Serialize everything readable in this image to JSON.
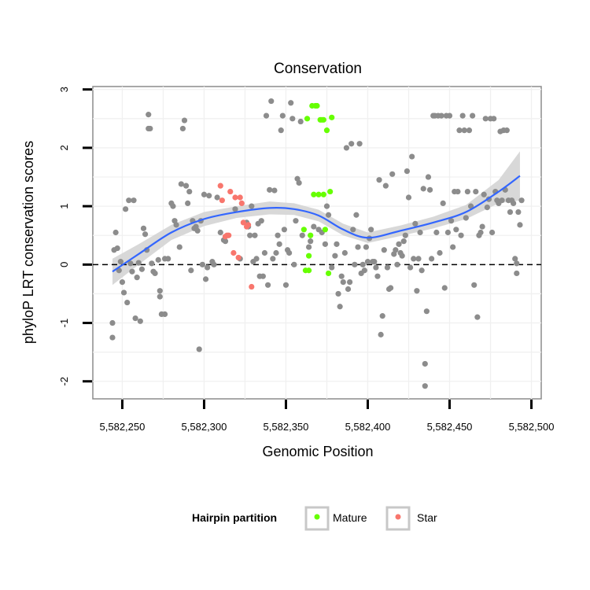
{
  "chart_data": {
    "type": "scatter",
    "title": "Conservation",
    "xlabel": "Genomic Position",
    "ylabel": "phyloP LRT conservation scores",
    "xlim": [
      5582232,
      5582506
    ],
    "ylim": [
      -2.3,
      3.05
    ],
    "x_ticks": [
      5582250,
      5582300,
      5582350,
      5582400,
      5582450,
      5582500
    ],
    "x_tick_labels": [
      "5,582,250",
      "5,582,300",
      "5,582,350",
      "5,582,400",
      "5,582,450",
      "5,582,500"
    ],
    "y_ticks": [
      -2,
      -1,
      0,
      1,
      2,
      3
    ],
    "y_tick_labels": [
      "-2",
      "-1",
      "0",
      "1",
      "2",
      "3"
    ],
    "grid": true,
    "reference_line": {
      "y": 0,
      "style": "dashed"
    },
    "legend": {
      "title": "Hairpin partition",
      "position": "bottom",
      "entries": [
        {
          "label": "Mature",
          "color": "#66ff00"
        },
        {
          "label": "Star",
          "color": "#f8766d"
        }
      ]
    },
    "colors": {
      "background_points": "#8c8c8c",
      "Mature": "#66ff00",
      "Star": "#f8766d",
      "smooth": "#3366ff",
      "band": "#d4d4d4"
    },
    "series": [
      {
        "group": "background",
        "points": [
          [
            5582244,
            -1.0
          ],
          [
            5582244,
            -1.25
          ],
          [
            5582245,
            0.25
          ],
          [
            5582246,
            0.55
          ],
          [
            5582247,
            0.28
          ],
          [
            5582248,
            -0.1
          ],
          [
            5582249,
            0.05
          ],
          [
            5582250,
            -0.3
          ],
          [
            5582251,
            -0.48
          ],
          [
            5582252,
            0.95
          ],
          [
            5582253,
            -0.65
          ],
          [
            5582254,
            1.1
          ],
          [
            5582255,
            0.02
          ],
          [
            5582256,
            -0.12
          ],
          [
            5582257,
            1.1
          ],
          [
            5582258,
            -0.92
          ],
          [
            5582259,
            -0.22
          ],
          [
            5582260,
            0.03
          ],
          [
            5582261,
            -0.97
          ],
          [
            5582262,
            -0.08
          ],
          [
            5582263,
            0.62
          ],
          [
            5582264,
            0.52
          ],
          [
            5582265,
            0.25
          ],
          [
            5582266,
            2.33
          ],
          [
            5582266,
            2.57
          ],
          [
            5582267,
            2.33
          ],
          [
            5582268,
            0.02
          ],
          [
            5582269,
            -0.12
          ],
          [
            5582270,
            -0.15
          ],
          [
            5582272,
            0.08
          ],
          [
            5582273,
            -0.45
          ],
          [
            5582273,
            -0.55
          ],
          [
            5582274,
            -0.85
          ],
          [
            5582276,
            -0.85
          ],
          [
            5582276,
            0.1
          ],
          [
            5582278,
            0.1
          ],
          [
            5582280,
            1.05
          ],
          [
            5582281,
            1.0
          ],
          [
            5582282,
            0.75
          ],
          [
            5582283,
            0.68
          ],
          [
            5582285,
            0.3
          ],
          [
            5582286,
            1.38
          ],
          [
            5582287,
            2.33
          ],
          [
            5582288,
            2.47
          ],
          [
            5582289,
            1.35
          ],
          [
            5582290,
            1.05
          ],
          [
            5582291,
            1.25
          ],
          [
            5582292,
            -0.1
          ],
          [
            5582293,
            0.75
          ],
          [
            5582294,
            0.62
          ],
          [
            5582295,
            0.65
          ],
          [
            5582296,
            0.58
          ],
          [
            5582297,
            -1.45
          ],
          [
            5582298,
            0.75
          ],
          [
            5582299,
            0.0
          ],
          [
            5582300,
            1.2
          ],
          [
            5582301,
            -0.25
          ],
          [
            5582302,
            -0.05
          ],
          [
            5582303,
            1.18
          ],
          [
            5582305,
            0.05
          ],
          [
            5582306,
            0.0
          ],
          [
            5582308,
            1.15
          ],
          [
            5582310,
            0.55
          ],
          [
            5582312,
            0.42
          ],
          [
            5582313,
            0.4
          ],
          [
            5582319,
            0.95
          ],
          [
            5582322,
            0.1
          ],
          [
            5582326,
            0.72
          ],
          [
            5582327,
            0.65
          ],
          [
            5582328,
            0.5
          ],
          [
            5582329,
            1.0
          ],
          [
            5582330,
            0.05
          ],
          [
            5582331,
            0.5
          ],
          [
            5582332,
            0.1
          ],
          [
            5582333,
            0.7
          ],
          [
            5582334,
            -0.2
          ],
          [
            5582335,
            0.75
          ],
          [
            5582336,
            -0.2
          ],
          [
            5582337,
            0.2
          ],
          [
            5582338,
            2.55
          ],
          [
            5582339,
            -0.35
          ],
          [
            5582340,
            1.28
          ],
          [
            5582341,
            2.8
          ],
          [
            5582342,
            0.1
          ],
          [
            5582343,
            1.27
          ],
          [
            5582344,
            0.2
          ],
          [
            5582345,
            0.5
          ],
          [
            5582346,
            0.35
          ],
          [
            5582347,
            2.3
          ],
          [
            5582348,
            2.55
          ],
          [
            5582349,
            0.6
          ],
          [
            5582350,
            -0.35
          ],
          [
            5582351,
            0.25
          ],
          [
            5582352,
            0.2
          ],
          [
            5582353,
            2.77
          ],
          [
            5582354,
            2.5
          ],
          [
            5582355,
            0.0
          ],
          [
            5582356,
            0.75
          ],
          [
            5582357,
            1.47
          ],
          [
            5582358,
            1.4
          ],
          [
            5582359,
            2.45
          ],
          [
            5582360,
            0.5
          ],
          [
            5582364,
            0.3
          ],
          [
            5582365,
            0.4
          ],
          [
            5582367,
            0.65
          ],
          [
            5582370,
            0.6
          ],
          [
            5582372,
            0.55
          ],
          [
            5582374,
            0.35
          ],
          [
            5582375,
            1.0
          ],
          [
            5582376,
            0.85
          ],
          [
            5582378,
            -0.05
          ],
          [
            5582380,
            0.15
          ],
          [
            5582381,
            0.35
          ],
          [
            5582382,
            -0.5
          ],
          [
            5582383,
            -0.72
          ],
          [
            5582384,
            -0.2
          ],
          [
            5582385,
            -0.3
          ],
          [
            5582386,
            0.2
          ],
          [
            5582387,
            2.0
          ],
          [
            5582388,
            -0.42
          ],
          [
            5582389,
            -0.3
          ],
          [
            5582390,
            2.07
          ],
          [
            5582391,
            0.6
          ],
          [
            5582392,
            0.0
          ],
          [
            5582393,
            0.85
          ],
          [
            5582394,
            0.3
          ],
          [
            5582395,
            2.07
          ],
          [
            5582396,
            -0.15
          ],
          [
            5582397,
            0.0
          ],
          [
            5582398,
            -0.1
          ],
          [
            5582399,
            0.3
          ],
          [
            5582400,
            0.05
          ],
          [
            5582401,
            0.45
          ],
          [
            5582402,
            0.6
          ],
          [
            5582403,
            0.05
          ],
          [
            5582404,
            0.05
          ],
          [
            5582405,
            -0.05
          ],
          [
            5582406,
            -0.2
          ],
          [
            5582407,
            1.45
          ],
          [
            5582408,
            -1.2
          ],
          [
            5582409,
            -0.88
          ],
          [
            5582410,
            0.25
          ],
          [
            5582411,
            1.35
          ],
          [
            5582412,
            -0.05
          ],
          [
            5582413,
            -0.42
          ],
          [
            5582414,
            -0.4
          ],
          [
            5582415,
            1.55
          ],
          [
            5582416,
            0.18
          ],
          [
            5582417,
            0.25
          ],
          [
            5582418,
            0.0
          ],
          [
            5582419,
            0.35
          ],
          [
            5582420,
            0.2
          ],
          [
            5582421,
            0.15
          ],
          [
            5582422,
            0.4
          ],
          [
            5582423,
            0.5
          ],
          [
            5582424,
            1.6
          ],
          [
            5582425,
            1.15
          ],
          [
            5582426,
            -0.05
          ],
          [
            5582427,
            1.85
          ],
          [
            5582428,
            0.1
          ],
          [
            5582429,
            0.7
          ],
          [
            5582430,
            -0.45
          ],
          [
            5582431,
            0.1
          ],
          [
            5582432,
            0.55
          ],
          [
            5582433,
            -0.1
          ],
          [
            5582434,
            1.3
          ],
          [
            5582435,
            -1.7
          ],
          [
            5582435,
            -2.08
          ],
          [
            5582436,
            -0.8
          ],
          [
            5582437,
            1.5
          ],
          [
            5582438,
            1.28
          ],
          [
            5582439,
            0.1
          ],
          [
            5582440,
            2.55
          ],
          [
            5582441,
            2.55
          ],
          [
            5582442,
            0.55
          ],
          [
            5582443,
            2.55
          ],
          [
            5582444,
            0.2
          ],
          [
            5582445,
            2.55
          ],
          [
            5582446,
            1.05
          ],
          [
            5582447,
            -0.4
          ],
          [
            5582448,
            2.55
          ],
          [
            5582449,
            0.55
          ],
          [
            5582450,
            2.55
          ],
          [
            5582451,
            0.75
          ],
          [
            5582452,
            0.3
          ],
          [
            5582453,
            1.25
          ],
          [
            5582454,
            0.6
          ],
          [
            5582455,
            1.25
          ],
          [
            5582456,
            2.3
          ],
          [
            5582457,
            0.5
          ],
          [
            5582458,
            2.55
          ],
          [
            5582459,
            2.3
          ],
          [
            5582460,
            0.8
          ],
          [
            5582461,
            1.25
          ],
          [
            5582462,
            2.3
          ],
          [
            5582463,
            1.0
          ],
          [
            5582464,
            2.55
          ],
          [
            5582465,
            -0.35
          ],
          [
            5582466,
            1.25
          ],
          [
            5582467,
            -0.9
          ],
          [
            5582468,
            0.5
          ],
          [
            5582469,
            0.55
          ],
          [
            5582470,
            0.65
          ],
          [
            5582471,
            1.2
          ],
          [
            5582472,
            2.5
          ],
          [
            5582473,
            0.98
          ],
          [
            5582474,
            1.12
          ],
          [
            5582475,
            2.5
          ],
          [
            5582476,
            0.55
          ],
          [
            5582477,
            2.5
          ],
          [
            5582478,
            1.25
          ],
          [
            5582479,
            1.1
          ],
          [
            5582480,
            1.05
          ],
          [
            5582481,
            2.28
          ],
          [
            5582482,
            1.1
          ],
          [
            5582483,
            2.3
          ],
          [
            5582484,
            1.28
          ],
          [
            5582485,
            2.3
          ],
          [
            5582486,
            1.1
          ],
          [
            5582487,
            0.9
          ],
          [
            5582488,
            1.1
          ],
          [
            5582489,
            1.05
          ],
          [
            5582490,
            0.1
          ],
          [
            5582491,
            -0.15
          ],
          [
            5582491,
            0.02
          ],
          [
            5582492,
            0.9
          ],
          [
            5582493,
            0.68
          ],
          [
            5582494,
            1.1
          ]
        ]
      },
      {
        "name": "Mature",
        "points": [
          [
            5582361,
            0.6
          ],
          [
            5582362,
            -0.1
          ],
          [
            5582363,
            2.5
          ],
          [
            5582364,
            -0.1
          ],
          [
            5582364,
            0.15
          ],
          [
            5582365,
            0.5
          ],
          [
            5582366,
            2.72
          ],
          [
            5582367,
            1.2
          ],
          [
            5582368,
            2.72
          ],
          [
            5582369,
            2.72
          ],
          [
            5582370,
            1.2
          ],
          [
            5582371,
            2.48
          ],
          [
            5582372,
            2.48
          ],
          [
            5582373,
            1.2
          ],
          [
            5582373,
            2.48
          ],
          [
            5582374,
            0.6
          ],
          [
            5582375,
            2.3
          ],
          [
            5582376,
            -0.15
          ],
          [
            5582377,
            1.25
          ],
          [
            5582378,
            2.52
          ]
        ]
      },
      {
        "name": "Star",
        "points": [
          [
            5582310,
            1.35
          ],
          [
            5582311,
            1.1
          ],
          [
            5582313,
            0.48
          ],
          [
            5582314,
            0.5
          ],
          [
            5582315,
            0.5
          ],
          [
            5582316,
            1.25
          ],
          [
            5582318,
            0.2
          ],
          [
            5582319,
            1.15
          ],
          [
            5582321,
            0.12
          ],
          [
            5582322,
            1.15
          ],
          [
            5582323,
            1.05
          ],
          [
            5582324,
            0.72
          ],
          [
            5582326,
            0.65
          ],
          [
            5582327,
            0.68
          ],
          [
            5582329,
            -0.38
          ]
        ]
      }
    ],
    "smooth": [
      [
        5582244,
        -0.12
      ],
      [
        5582260,
        0.18
      ],
      [
        5582280,
        0.55
      ],
      [
        5582300,
        0.78
      ],
      [
        5582320,
        0.9
      ],
      [
        5582340,
        0.97
      ],
      [
        5582355,
        0.95
      ],
      [
        5582370,
        0.84
      ],
      [
        5582385,
        0.6
      ],
      [
        5582400,
        0.46
      ],
      [
        5582420,
        0.58
      ],
      [
        5582440,
        0.72
      ],
      [
        5582460,
        0.9
      ],
      [
        5582480,
        1.25
      ],
      [
        5582493,
        1.52
      ]
    ],
    "smooth_band": [
      [
        5582244,
        -0.35,
        0.1
      ],
      [
        5582260,
        0.0,
        0.35
      ],
      [
        5582280,
        0.42,
        0.68
      ],
      [
        5582300,
        0.66,
        0.9
      ],
      [
        5582320,
        0.8,
        1.0
      ],
      [
        5582340,
        0.86,
        1.08
      ],
      [
        5582355,
        0.85,
        1.05
      ],
      [
        5582370,
        0.74,
        0.94
      ],
      [
        5582385,
        0.5,
        0.7
      ],
      [
        5582400,
        0.37,
        0.55
      ],
      [
        5582420,
        0.49,
        0.67
      ],
      [
        5582440,
        0.62,
        0.82
      ],
      [
        5582460,
        0.78,
        1.02
      ],
      [
        5582480,
        1.05,
        1.45
      ],
      [
        5582493,
        1.1,
        1.94
      ]
    ]
  }
}
